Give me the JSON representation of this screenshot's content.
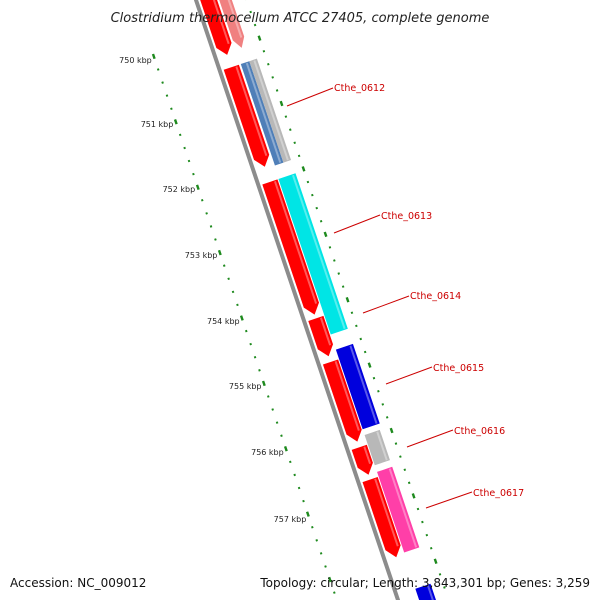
{
  "title": "Clostridium thermocellum ATCC 27405, complete genome",
  "accession": "Accession: NC_009012",
  "stats": "Topology: circular; Length: 3,843,301 bp; Genes: 3,259",
  "kbp_ticks": [
    "750 kbp",
    "751 kbp",
    "752 kbp",
    "753 kbp",
    "754 kbp",
    "755 kbp",
    "756 kbp",
    "757 kbp"
  ],
  "gene_labels": [
    "Cthe_0612",
    "Cthe_0613",
    "Cthe_0614",
    "Cthe_0615",
    "Cthe_0616",
    "Cthe_0617"
  ],
  "colors": {
    "backbone": "#8c8c8c",
    "tick": "#1e8a1e",
    "gene_red": "#ff0000",
    "gene_pink": "#f08080",
    "gene_steelblue": "#4f7fb8",
    "gene_gray": "#b8b8b8",
    "gene_cyan": "#00e5e5",
    "gene_blue": "#0000dd",
    "gene_magenta": "#ff3fa8",
    "label_red": "#cc0000"
  }
}
